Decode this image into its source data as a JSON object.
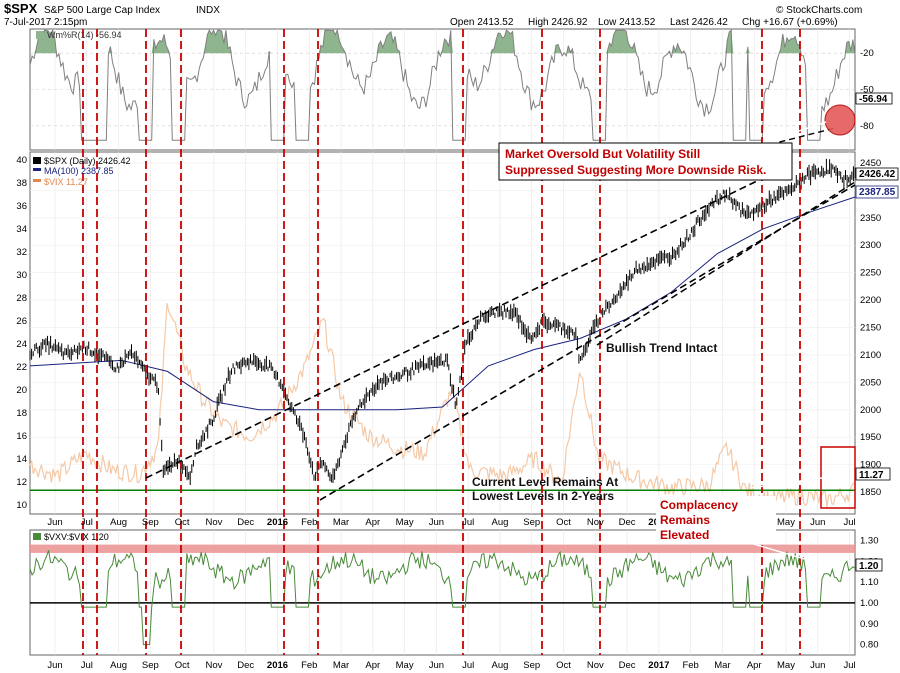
{
  "header": {
    "symbol": "$SPX",
    "name": "S&P 500 Large Cap Index",
    "exchange": "INDX",
    "datetime": "7-Jul-2017 2:15pm",
    "open": "Open 2413.52",
    "high": "High 2426.92",
    "low": "Low 2413.52",
    "last": "Last 2426.42",
    "change": "Chg +16.67 (+0.69%)",
    "credit": "© StockCharts.com"
  },
  "chart_data": [
    {
      "id": "williams",
      "type": "line",
      "title": "Wm%R(14) -56.94",
      "last_value": "-56.94",
      "ylim": [
        -100,
        0
      ],
      "y_ticks": [
        "-20",
        "-50",
        "-80"
      ],
      "overbought_level": -20,
      "oversold_level": -80,
      "colors": {
        "line": "#808080",
        "fill": "#8fb58f"
      }
    },
    {
      "id": "price",
      "type": "line",
      "series": [
        {
          "name": "$SPX (Daily) 2426.42",
          "color": "#000000",
          "style": "bars",
          "values": [
            [
              0,
              2105
            ],
            [
              0.02,
              2120
            ],
            [
              0.04,
              2100
            ],
            [
              0.06,
              2115
            ],
            [
              0.08,
              2095
            ],
            [
              0.095,
              2075
            ],
            [
              0.11,
              2105
            ],
            [
              0.125,
              2070
            ],
            [
              0.14,
              2045
            ],
            [
              0.145,
              1885
            ],
            [
              0.16,
              1910
            ],
            [
              0.175,
              1880
            ],
            [
              0.18,
              1925
            ],
            [
              0.2,
              1985
            ],
            [
              0.22,
              2075
            ],
            [
              0.24,
              2090
            ],
            [
              0.26,
              2080
            ],
            [
              0.275,
              2045
            ],
            [
              0.285,
              2005
            ],
            [
              0.3,
              1950
            ],
            [
              0.31,
              1880
            ],
            [
              0.32,
              1905
            ],
            [
              0.33,
              1870
            ],
            [
              0.345,
              1950
            ],
            [
              0.36,
              2010
            ],
            [
              0.38,
              2050
            ],
            [
              0.4,
              2060
            ],
            [
              0.42,
              2075
            ],
            [
              0.44,
              2085
            ],
            [
              0.455,
              2090
            ],
            [
              0.465,
              2005
            ],
            [
              0.475,
              2120
            ],
            [
              0.49,
              2165
            ],
            [
              0.51,
              2180
            ],
            [
              0.53,
              2175
            ],
            [
              0.545,
              2130
            ],
            [
              0.56,
              2160
            ],
            [
              0.58,
              2150
            ],
            [
              0.595,
              2140
            ],
            [
              0.6,
              2085
            ],
            [
              0.61,
              2130
            ],
            [
              0.625,
              2180
            ],
            [
              0.64,
              2205
            ],
            [
              0.66,
              2255
            ],
            [
              0.68,
              2270
            ],
            [
              0.7,
              2280
            ],
            [
              0.72,
              2320
            ],
            [
              0.74,
              2370
            ],
            [
              0.76,
              2395
            ],
            [
              0.78,
              2355
            ],
            [
              0.795,
              2365
            ],
            [
              0.81,
              2385
            ],
            [
              0.83,
              2400
            ],
            [
              0.845,
              2425
            ],
            [
              0.86,
              2435
            ],
            [
              0.875,
              2440
            ],
            [
              0.885,
              2420
            ],
            [
              0.9,
              2427
            ]
          ]
        },
        {
          "name": "MA(100) 2387.85",
          "color": "#1a237e",
          "style": "line",
          "values": [
            [
              0,
              2080
            ],
            [
              0.1,
              2090
            ],
            [
              0.15,
              2070
            ],
            [
              0.2,
              2015
            ],
            [
              0.25,
              2000
            ],
            [
              0.3,
              2000
            ],
            [
              0.35,
              2000
            ],
            [
              0.4,
              2000
            ],
            [
              0.45,
              2005
            ],
            [
              0.5,
              2080
            ],
            [
              0.55,
              2110
            ],
            [
              0.6,
              2130
            ],
            [
              0.65,
              2165
            ],
            [
              0.7,
              2215
            ],
            [
              0.75,
              2285
            ],
            [
              0.8,
              2330
            ],
            [
              0.85,
              2360
            ],
            [
              0.9,
              2388
            ]
          ]
        },
        {
          "name": "$VIX 11.27",
          "color": "#f4c9a8",
          "style": "line",
          "values": [
            [
              0,
              13.5
            ],
            [
              0.03,
              12.5
            ],
            [
              0.06,
              14.5
            ],
            [
              0.09,
              13
            ],
            [
              0.12,
              12.7
            ],
            [
              0.14,
              15
            ],
            [
              0.15,
              28
            ],
            [
              0.17,
              22
            ],
            [
              0.19,
              19
            ],
            [
              0.21,
              17
            ],
            [
              0.24,
              16
            ],
            [
              0.27,
              18
            ],
            [
              0.3,
              22
            ],
            [
              0.32,
              26
            ],
            [
              0.34,
              19
            ],
            [
              0.37,
              16
            ],
            [
              0.4,
              15
            ],
            [
              0.43,
              14.5
            ],
            [
              0.46,
              20
            ],
            [
              0.48,
              13
            ],
            [
              0.52,
              12.5
            ],
            [
              0.55,
              14
            ],
            [
              0.58,
              12
            ],
            [
              0.6,
              22
            ],
            [
              0.62,
              14
            ],
            [
              0.66,
              12.3
            ],
            [
              0.7,
              11.5
            ],
            [
              0.74,
              11.7
            ],
            [
              0.76,
              15
            ],
            [
              0.78,
              11.3
            ],
            [
              0.81,
              10.5
            ],
            [
              0.84,
              10.8
            ],
            [
              0.87,
              10.4
            ],
            [
              0.9,
              11.27
            ]
          ]
        }
      ],
      "price_ylim": [
        1810,
        2470
      ],
      "vix_ylim": [
        9.2,
        40.7
      ],
      "price_ticks": [
        "2450",
        "2400",
        "2350",
        "2300",
        "2250",
        "2200",
        "2150",
        "2100",
        "2050",
        "2000",
        "1950",
        "1900",
        "1850"
      ],
      "vix_ticks": [
        "40",
        "38",
        "36",
        "34",
        "32",
        "30",
        "28",
        "26",
        "24",
        "22",
        "20",
        "18",
        "16",
        "14",
        "12",
        "10"
      ],
      "price_last_label": "2426.42",
      "ma_last_label": "2387.85",
      "vix_last_label": "11.27",
      "vix_low_line": 11.27,
      "colors": {
        "trendline": "#000000",
        "green_line": "#008000",
        "red_marker": "#cc0000"
      }
    },
    {
      "id": "vxv_vix",
      "type": "line",
      "title": "$VXV:$VIX 1.20",
      "last_label": "1.20",
      "ylim": [
        0.75,
        1.35
      ],
      "y_ticks": [
        "1.30",
        "1.20",
        "1.10",
        "1.00",
        "0.90",
        "0.80"
      ],
      "baseline": 1.0,
      "band": [
        1.24,
        1.28
      ],
      "colors": {
        "line": "#4a8a3a",
        "band": "#ea9090"
      }
    }
  ],
  "x_axis_labels": [
    "Jun",
    "Jul",
    "Aug",
    "Sep",
    "Oct",
    "Nov",
    "Dec",
    "2016",
    "Feb",
    "Mar",
    "Apr",
    "May",
    "Jun",
    "Jul",
    "Aug",
    "Sep",
    "Oct",
    "Nov",
    "Dec",
    "2017",
    "Feb",
    "Mar",
    "Apr",
    "May",
    "Jun",
    "Jul"
  ],
  "annotations": {
    "oversold": [
      "Market Oversold But Volatility Still",
      "Suppressed Suggesting More Downside Risk."
    ],
    "trend": "Bullish Trend Intact",
    "vix_level": [
      "Current Level Remains At",
      "Lowest Levels In 2-Years"
    ],
    "complacency": [
      "Complacency",
      "Remains",
      "Elevated"
    ]
  }
}
